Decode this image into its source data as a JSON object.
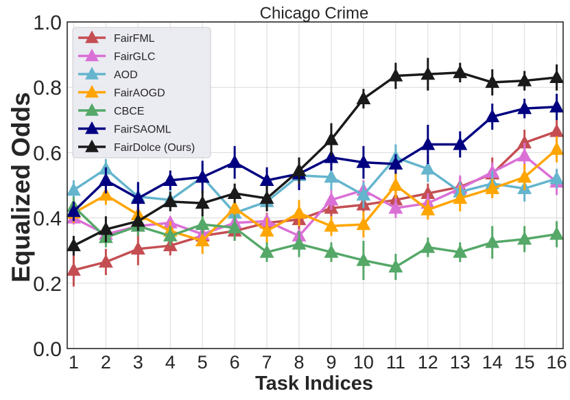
{
  "chart_data": {
    "type": "line",
    "title": "Chicago Crime",
    "xlabel": "Task Indices",
    "ylabel": "Equalized Odds",
    "x": [
      1,
      2,
      3,
      4,
      5,
      6,
      7,
      8,
      9,
      10,
      11,
      12,
      13,
      14,
      15,
      16
    ],
    "x_ticks": [
      "1",
      "2",
      "3",
      "4",
      "5",
      "6",
      "7",
      "8",
      "9",
      "10",
      "11",
      "12",
      "13",
      "14",
      "15",
      "16"
    ],
    "xlim": [
      0.8,
      16.2
    ],
    "ylim": [
      0.0,
      1.0
    ],
    "y_ticks": [
      "0.0",
      "0.2",
      "0.4",
      "0.6",
      "0.8",
      "1.0"
    ],
    "y_tick_values": [
      0.0,
      0.2,
      0.4,
      0.6,
      0.8,
      1.0
    ],
    "grid": true,
    "legend_position": "top-left",
    "marker": "triangle",
    "series": [
      {
        "name": "FairFML",
        "color": "#c44e52",
        "values": [
          0.24,
          0.265,
          0.305,
          0.315,
          0.345,
          0.36,
          0.385,
          0.395,
          0.43,
          0.44,
          0.455,
          0.475,
          0.495,
          0.535,
          0.63,
          0.665
        ],
        "errors": [
          0.05,
          0.04,
          0.05,
          0.03,
          0.03,
          0.03,
          0.03,
          0.03,
          0.04,
          0.03,
          0.04,
          0.03,
          0.03,
          0.05,
          0.04,
          0.04
        ]
      },
      {
        "name": "FairGLC",
        "color": "#da70d6",
        "values": [
          0.4,
          0.35,
          0.375,
          0.385,
          0.35,
          0.385,
          0.39,
          0.345,
          0.455,
          0.485,
          0.43,
          0.445,
          0.49,
          0.54,
          0.59,
          0.51
        ],
        "errors": [
          0.02,
          0.02,
          0.02,
          0.02,
          0.02,
          0.02,
          0.02,
          0.02,
          0.03,
          0.03,
          0.03,
          0.03,
          0.04,
          0.03,
          0.04,
          0.04
        ]
      },
      {
        "name": "AOD",
        "color": "#64b5cd",
        "values": [
          0.485,
          0.55,
          0.465,
          0.455,
          0.525,
          0.415,
          0.45,
          0.53,
          0.525,
          0.47,
          0.585,
          0.55,
          0.48,
          0.505,
          0.49,
          0.52
        ],
        "errors": [
          0.03,
          0.03,
          0.04,
          0.03,
          0.04,
          0.03,
          0.03,
          0.03,
          0.04,
          0.04,
          0.04,
          0.04,
          0.03,
          0.04,
          0.04,
          0.03
        ]
      },
      {
        "name": "FairAOGD",
        "color": "#ffa500",
        "values": [
          0.415,
          0.47,
          0.41,
          0.36,
          0.33,
          0.43,
          0.36,
          0.415,
          0.375,
          0.38,
          0.5,
          0.425,
          0.46,
          0.49,
          0.525,
          0.61
        ],
        "errors": [
          0.03,
          0.03,
          0.03,
          0.03,
          0.04,
          0.03,
          0.04,
          0.04,
          0.03,
          0.04,
          0.04,
          0.03,
          0.04,
          0.03,
          0.04,
          0.04
        ]
      },
      {
        "name": "CBCE",
        "color": "#55a868",
        "values": [
          0.435,
          0.34,
          0.375,
          0.345,
          0.38,
          0.37,
          0.295,
          0.32,
          0.295,
          0.27,
          0.25,
          0.31,
          0.295,
          0.325,
          0.335,
          0.35
        ],
        "errors": [
          0.03,
          0.03,
          0.03,
          0.03,
          0.03,
          0.04,
          0.03,
          0.04,
          0.03,
          0.06,
          0.04,
          0.03,
          0.03,
          0.05,
          0.04,
          0.04
        ]
      },
      {
        "name": "FairSAOML",
        "color": "#000080",
        "values": [
          0.42,
          0.515,
          0.46,
          0.515,
          0.525,
          0.57,
          0.515,
          0.535,
          0.585,
          0.57,
          0.565,
          0.625,
          0.625,
          0.71,
          0.735,
          0.74
        ],
        "errors": [
          0.03,
          0.04,
          0.05,
          0.03,
          0.05,
          0.05,
          0.04,
          0.05,
          0.04,
          0.05,
          0.03,
          0.06,
          0.04,
          0.04,
          0.03,
          0.04
        ]
      },
      {
        "name": "FairDolce (Ours)",
        "color": "#1a1a1a",
        "values": [
          0.315,
          0.365,
          0.39,
          0.45,
          0.445,
          0.475,
          0.46,
          0.545,
          0.64,
          0.765,
          0.835,
          0.84,
          0.845,
          0.815,
          0.82,
          0.83
        ],
        "errors": [
          0.03,
          0.04,
          0.03,
          0.03,
          0.04,
          0.03,
          0.04,
          0.04,
          0.05,
          0.03,
          0.04,
          0.05,
          0.03,
          0.04,
          0.03,
          0.04
        ]
      }
    ]
  }
}
